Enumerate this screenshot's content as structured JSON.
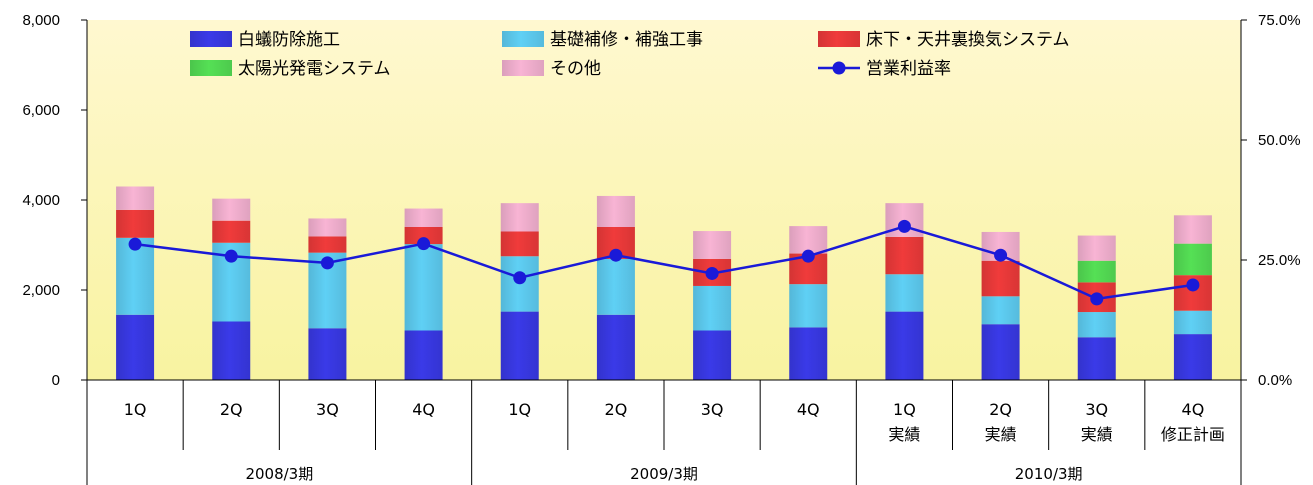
{
  "chart_data": {
    "type": "bar",
    "stacked": true,
    "categories": [
      "1Q",
      "2Q",
      "3Q",
      "4Q",
      "1Q",
      "2Q",
      "3Q",
      "4Q",
      "1Q\n実績",
      "2Q\n実績",
      "3Q\n実績",
      "4Q\n修正計画"
    ],
    "groups": [
      {
        "label": "2008/3期",
        "from": 0,
        "to": 3
      },
      {
        "label": "2009/3期",
        "from": 4,
        "to": 7
      },
      {
        "label": "2010/3期",
        "from": 8,
        "to": 11
      }
    ],
    "series": [
      {
        "name": "白蟻防除施工",
        "color": "#3a3ae8",
        "values": [
          1450,
          1300,
          1150,
          1100,
          1520,
          1450,
          1100,
          1170,
          1520,
          1240,
          950,
          1020
        ]
      },
      {
        "name": "基礎補修・補強工事",
        "color": "#5fd0f5",
        "values": [
          1710,
          1750,
          1680,
          1920,
          1230,
          1240,
          990,
          960,
          830,
          620,
          560,
          520
        ]
      },
      {
        "name": "床下・天井裏換気システム",
        "color": "#f03b3b",
        "values": [
          620,
          490,
          360,
          380,
          550,
          710,
          600,
          680,
          830,
          790,
          660,
          790
        ]
      },
      {
        "name": "太陽光発電システム",
        "color": "#55e055",
        "values": [
          0,
          0,
          0,
          0,
          0,
          0,
          0,
          0,
          0,
          0,
          480,
          700
        ]
      },
      {
        "name": "その他",
        "color": "#f8b4d4",
        "values": [
          520,
          490,
          400,
          410,
          630,
          690,
          620,
          610,
          750,
          640,
          560,
          630
        ]
      }
    ],
    "line": {
      "name": "営業利益率",
      "color": "#1a1ad8",
      "values": [
        28.3,
        25.8,
        24.4,
        28.4,
        21.3,
        26.0,
        22.2,
        25.8,
        32.0,
        26.0,
        16.9,
        19.8
      ]
    },
    "y_left": {
      "min": 0,
      "max": 8000,
      "ticks": [
        "0",
        "2,000",
        "4,000",
        "6,000",
        "8,000"
      ]
    },
    "y_right": {
      "min": 0,
      "max": 75,
      "ticks": [
        "0.0%",
        "25.0%",
        "50.0%",
        "75.0%"
      ]
    },
    "legend": {
      "position": "top"
    }
  }
}
